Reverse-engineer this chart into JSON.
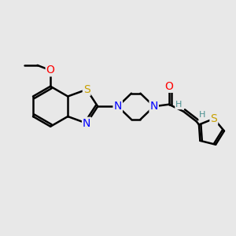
{
  "background_color": "#e8e8e8",
  "bond_color": "#000000",
  "bond_width": 1.8,
  "atom_colors": {
    "S": "#c8a000",
    "N": "#0000ff",
    "O": "#ff0000",
    "C": "#000000",
    "H": "#4a9090"
  },
  "font_size": 9,
  "fig_size": [
    3.0,
    3.0
  ],
  "dpi": 100
}
